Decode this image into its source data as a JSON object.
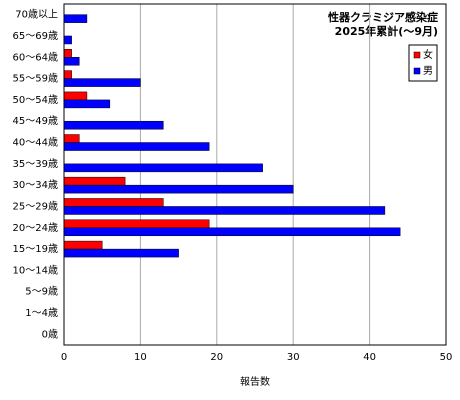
{
  "chart_data": {
    "type": "hbar",
    "title": "性器クラミジア感染症",
    "subtitle": "2025年累計(～9月)",
    "x_label": "報告数",
    "categories": [
      "70歳以上",
      "65～69歳",
      "60～64歳",
      "55～59歳",
      "50～54歳",
      "45～49歳",
      "40～44歳",
      "35～39歳",
      "30～34歳",
      "25～29歳",
      "20～24歳",
      "15～19歳",
      "10～14歳",
      "5～9歳",
      "1～4歳",
      "0歳"
    ],
    "series": [
      {
        "name": "女",
        "color": "#ff0000",
        "values": [
          0,
          0,
          1,
          1,
          3,
          0,
          2,
          0,
          8,
          13,
          19,
          5,
          0,
          0,
          0,
          0
        ]
      },
      {
        "name": "男",
        "color": "#0000ff",
        "values": [
          3,
          1,
          2,
          10,
          6,
          13,
          19,
          26,
          30,
          42,
          44,
          15,
          0,
          0,
          0,
          0
        ]
      }
    ],
    "xlim": [
      0,
      50
    ],
    "xticks": [
      0,
      10,
      20,
      30,
      40,
      50
    ],
    "grid": true,
    "legend": "top-right"
  }
}
